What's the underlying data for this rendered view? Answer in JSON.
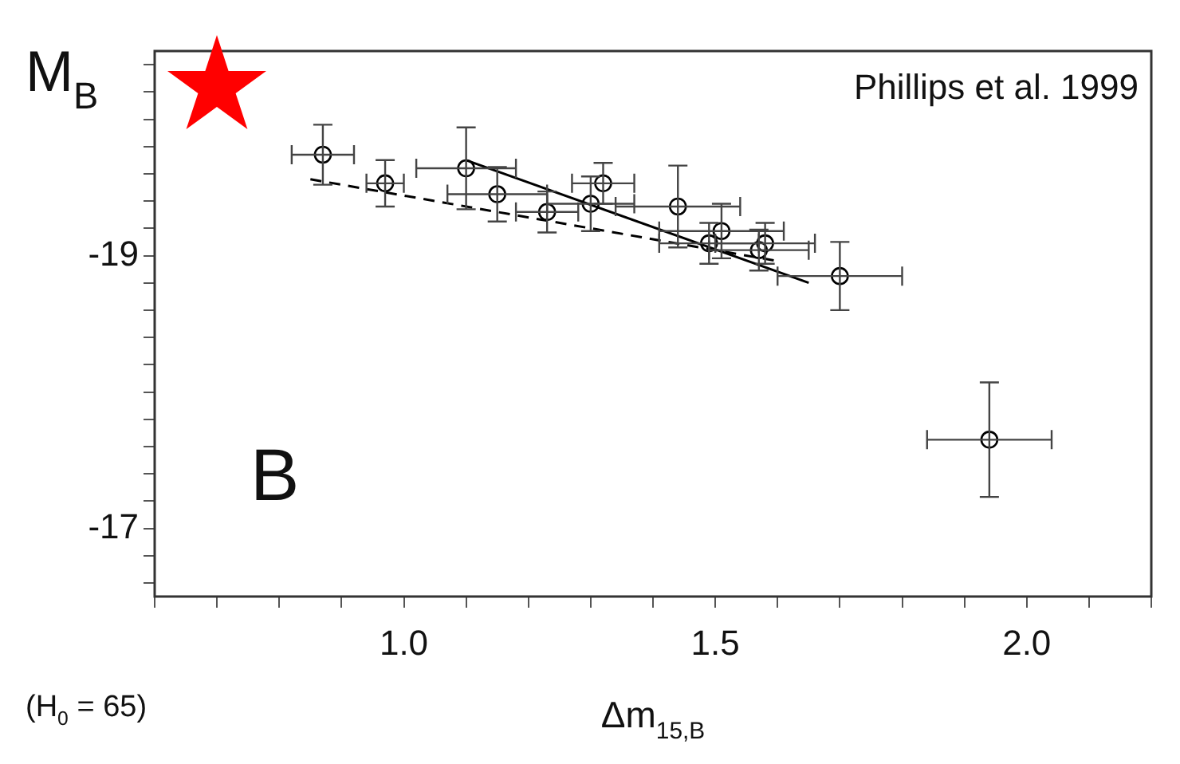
{
  "chart_data": {
    "type": "scatter",
    "ylabel": "M$_{B}$",
    "xlabel": "Δm$_{15,B}$",
    "annotations": [
      "Phillips et al. 1999",
      "B",
      "(H$_{0}$ = 65)"
    ],
    "xlim": [
      0.6,
      2.2
    ],
    "xticks": [
      {
        "value": 0.6,
        "label": null
      },
      {
        "value": 0.7,
        "label": null
      },
      {
        "value": 0.8,
        "label": null
      },
      {
        "value": 0.9,
        "label": null
      },
      {
        "value": 1,
        "label": "1.0"
      },
      {
        "value": 1.1,
        "label": null
      },
      {
        "value": 1.2,
        "label": null
      },
      {
        "value": 1.3,
        "label": null
      },
      {
        "value": 1.4,
        "label": null
      },
      {
        "value": 1.5,
        "label": "1.5"
      },
      {
        "value": 1.6,
        "label": null
      },
      {
        "value": 1.7,
        "label": null
      },
      {
        "value": 1.8,
        "label": null
      },
      {
        "value": 1.9,
        "label": null
      },
      {
        "value": 2,
        "label": "2.0"
      },
      {
        "value": 2.1,
        "label": null
      },
      {
        "value": 2.2,
        "label": null
      }
    ],
    "ylim": [
      -16.5,
      -20.5
    ],
    "yticks": [
      {
        "value": -20.4,
        "label": null
      },
      {
        "value": -20.2,
        "label": null
      },
      {
        "value": -20,
        "label": null
      },
      {
        "value": -19.8,
        "label": null
      },
      {
        "value": -19.6,
        "label": null
      },
      {
        "value": -19.4,
        "label": null
      },
      {
        "value": -19.2,
        "label": null
      },
      -19,
      {
        "value": -18.8,
        "label": null
      },
      {
        "value": -18.6,
        "label": null
      },
      {
        "value": -18.4,
        "label": null
      },
      {
        "value": -18.2,
        "label": null
      },
      {
        "value": -18,
        "label": null
      },
      {
        "value": -17.8,
        "label": null
      },
      {
        "value": -17.6,
        "label": null
      },
      {
        "value": -17.4,
        "label": null
      },
      {
        "value": -17.2,
        "label": null
      },
      -17,
      {
        "value": -16.8,
        "label": null
      },
      {
        "value": -16.6,
        "label": null
      }
    ],
    "grid": false,
    "legend": false,
    "series": [
      {
        "color": "#000000",
        "marker": "circle",
        "x": [
          0.87,
          0.97,
          1.1,
          1.15,
          1.23,
          1.3,
          1.32,
          1.44,
          1.49,
          1.51,
          1.57,
          1.58,
          1.7,
          1.94
        ],
        "values": [
          -19.74,
          -19.53,
          -19.64,
          -19.45,
          -19.32,
          -19.38,
          -19.53,
          -19.36,
          -19.09,
          -19.18,
          -19.04,
          -19.09,
          -18.85,
          -17.65
        ],
        "errors": [
          0.22,
          0.17,
          0.3,
          0.2,
          0.15,
          0.2,
          0.15,
          0.3,
          0.15,
          0.2,
          0.15,
          0.15,
          0.25,
          0.42
        ],
        "xerrors": [
          0.05,
          0.03,
          0.08,
          0.08,
          0.05,
          0.07,
          0.05,
          0.1,
          0.08,
          0.1,
          0.08,
          0.08,
          0.1,
          0.1
        ]
      },
      {
        "type": "line",
        "color": "#000000",
        "line_style": "solid",
        "marker": "none",
        "x": [
          1.1,
          1.65
        ],
        "values": [
          -19.7,
          -18.8
        ]
      },
      {
        "type": "line",
        "color": "#000000",
        "line_style": "dashed",
        "marker": "none",
        "x": [
          0.85,
          1.6
        ],
        "values": [
          -19.56,
          -18.96
        ]
      }
    ]
  }
}
